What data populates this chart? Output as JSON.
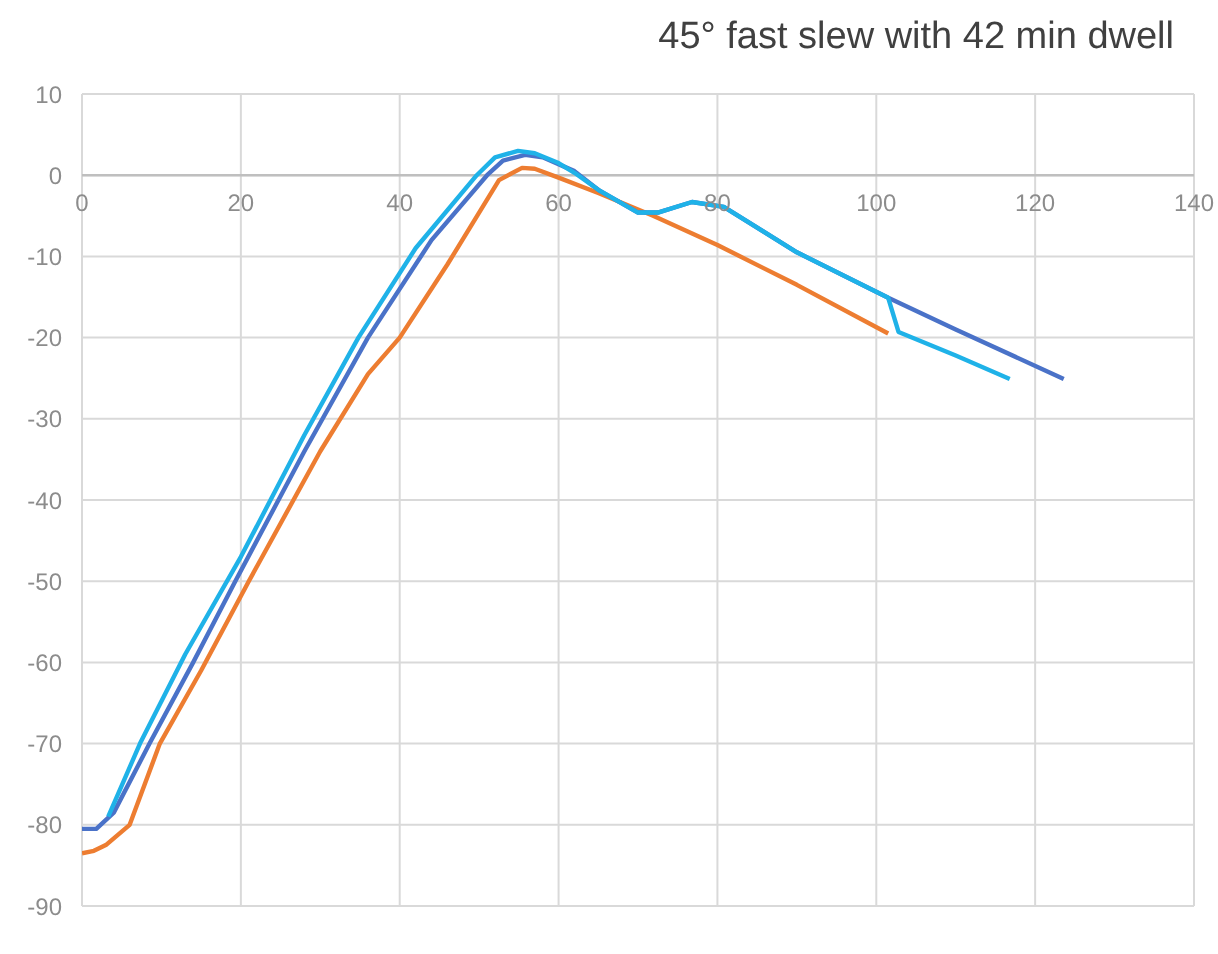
{
  "chart_data": {
    "type": "line",
    "title": "45° fast slew with 42 min dwell",
    "xlim": [
      0,
      140
    ],
    "xticks": [
      0,
      20,
      40,
      60,
      80,
      100,
      120,
      140
    ],
    "ylim": [
      -90,
      10
    ],
    "yticks": [
      -90,
      -80,
      -70,
      -60,
      -50,
      -40,
      -30,
      -20,
      -10,
      0,
      10
    ],
    "grid": true,
    "legend": false,
    "marker": "none",
    "line_style": "solid",
    "series": [
      {
        "color": "#ed7d31",
        "x": [
          0,
          1.5,
          3,
          6,
          9.8,
          15,
          21,
          30,
          36,
          40,
          46,
          52.5,
          55.4,
          57,
          60,
          65,
          71.9,
          80,
          90,
          101.5
        ],
        "values": [
          -83.5,
          -83.2,
          -82.5,
          -80,
          -70,
          -61,
          -50,
          -34,
          -24.5,
          -20,
          -11,
          -0.6,
          0.9,
          0.8,
          -0.3,
          -2.2,
          -5,
          -8.6,
          -13.5,
          -19.5
        ]
      },
      {
        "color": "#4a72c8",
        "x": [
          0,
          1.8,
          4,
          8.5,
          14,
          19.3,
          28,
          36,
          44,
          51,
          53,
          55.8,
          58,
          62,
          65,
          70,
          72.5,
          76.8,
          80.8,
          90,
          101.5,
          110,
          123.6
        ],
        "values": [
          -80.5,
          -80.5,
          -78.5,
          -70,
          -60,
          -50,
          -34,
          -20,
          -8,
          0,
          1.8,
          2.5,
          2.2,
          0.5,
          -1.8,
          -4.6,
          -4.6,
          -3.3,
          -3.9,
          -9.5,
          -15.1,
          -19,
          -25.1
        ]
      },
      {
        "color": "#1fb2e8",
        "x": [
          3.3,
          7.3,
          13,
          20,
          28,
          34.8,
          42,
          49.7,
          52,
          54.9,
          57,
          60,
          62,
          65,
          70,
          72.5,
          76.8,
          80.8,
          90,
          101.5,
          102.8,
          110,
          116.8
        ],
        "values": [
          -79,
          -70,
          -59,
          -47,
          -32,
          -20,
          -9,
          0,
          2.2,
          3,
          2.7,
          1.5,
          0.3,
          -1.8,
          -4.6,
          -4.6,
          -3.3,
          -3.9,
          -9.5,
          -15.1,
          -19.3,
          -22.2,
          -25.1
        ]
      }
    ]
  }
}
